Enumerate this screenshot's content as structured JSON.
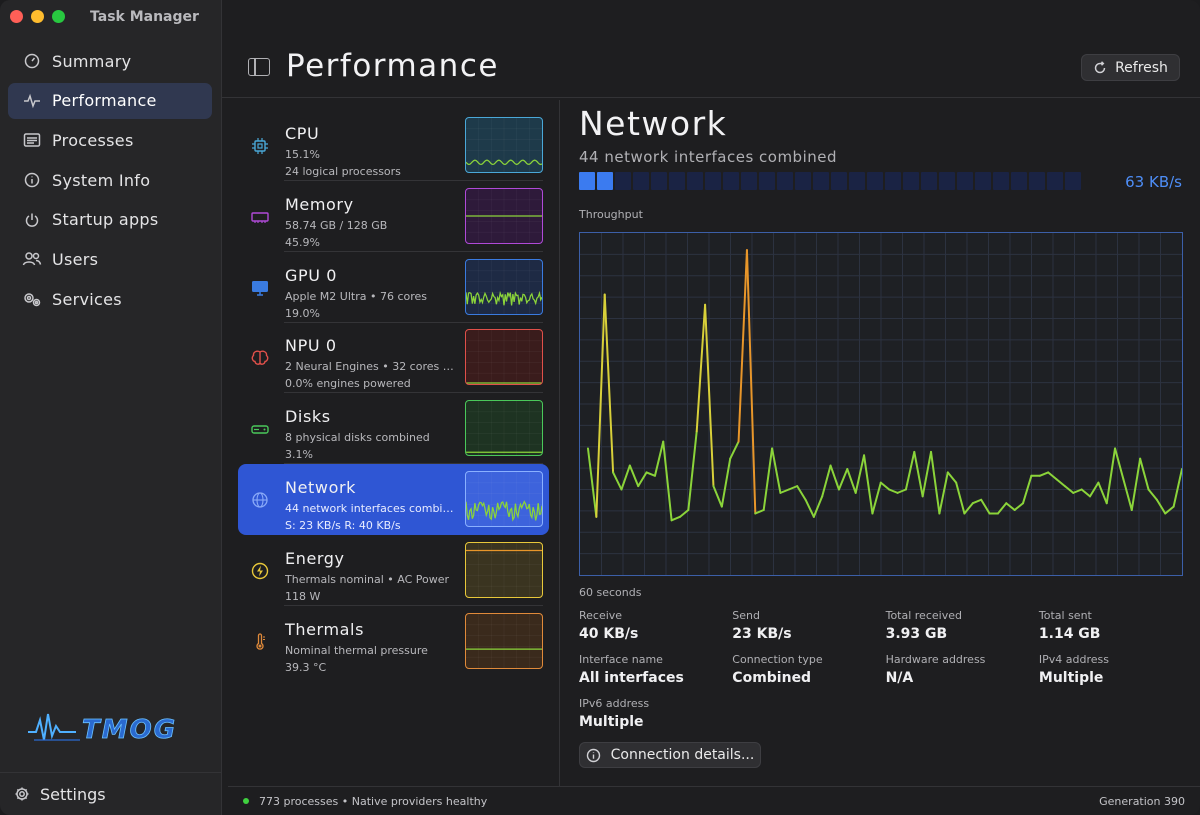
{
  "window": {
    "title": "Task Manager"
  },
  "sidebar": {
    "items": [
      {
        "label": "Summary",
        "icon": "gauge-icon"
      },
      {
        "label": "Performance",
        "icon": "pulse-icon",
        "active": true
      },
      {
        "label": "Processes",
        "icon": "list-icon"
      },
      {
        "label": "System Info",
        "icon": "info-icon"
      },
      {
        "label": "Startup apps",
        "icon": "power-icon"
      },
      {
        "label": "Users",
        "icon": "users-icon"
      },
      {
        "label": "Services",
        "icon": "gears-icon"
      }
    ],
    "logo_text": "TMOG",
    "settings_label": "Settings"
  },
  "header": {
    "title": "Performance",
    "refresh_label": "Refresh"
  },
  "devices": [
    {
      "name": "CPU",
      "line1": "15.1%",
      "line2": "24 logical processors",
      "color": "#4aa8d8",
      "icon": "cpu-icon"
    },
    {
      "name": "Memory",
      "line1": "58.74 GB / 128 GB",
      "line2": "45.9%",
      "color": "#b04ad8",
      "icon": "memory-icon"
    },
    {
      "name": "GPU 0",
      "line1": "Apple M2 Ultra • 76 cores",
      "line2": "19.0%",
      "color": "#3a7be0",
      "icon": "monitor-icon"
    },
    {
      "name": "NPU 0",
      "line1": "2 Neural Engines • 32 cores • h...",
      "line2": "0.0% engines powered",
      "color": "#e0504a",
      "icon": "brain-icon"
    },
    {
      "name": "Disks",
      "line1": "8 physical disks combined",
      "line2": "3.1%",
      "color": "#4ac85a",
      "icon": "disk-icon"
    },
    {
      "name": "Network",
      "line1": "44 network interfaces combined",
      "line2": "S: 23 KB/s  R: 40 KB/s",
      "color": "#2f56d4",
      "icon": "globe-icon",
      "active": true
    },
    {
      "name": "Energy",
      "line1": "Thermals nominal • AC Power",
      "line2": "118 W",
      "color": "#e8c83a",
      "icon": "bolt-icon"
    },
    {
      "name": "Thermals",
      "line1": "Nominal thermal pressure",
      "line2": "39.3 °C",
      "color": "#e08a3a",
      "icon": "thermometer-icon"
    }
  ],
  "detail": {
    "title": "Network",
    "subtitle": "44 network interfaces combined",
    "rate": "63 KB/s",
    "meter": {
      "segments": 28,
      "active": 2
    },
    "throughput_label": "Throughput",
    "window_label": "60 seconds",
    "stats": [
      {
        "label": "Receive",
        "value": "40 KB/s"
      },
      {
        "label": "Send",
        "value": "23 KB/s"
      },
      {
        "label": "Total received",
        "value": "3.93 GB"
      },
      {
        "label": "Total sent",
        "value": "1.14 GB"
      },
      {
        "label": "Interface name",
        "value": "All interfaces"
      },
      {
        "label": "Connection type",
        "value": "Combined"
      },
      {
        "label": "Hardware address",
        "value": "N/A"
      },
      {
        "label": "IPv4 address",
        "value": "Multiple"
      },
      {
        "label": "IPv6 address",
        "value": "Multiple"
      }
    ],
    "details_button": "Connection details..."
  },
  "chart_data": {
    "type": "line",
    "title": "Throughput",
    "xlabel": "60 seconds",
    "ylabel": "",
    "y": [
      37,
      17,
      82,
      30,
      25,
      32,
      26,
      30,
      29,
      39,
      16,
      17,
      19,
      42,
      79,
      26,
      20,
      34,
      39,
      95,
      18,
      19,
      37,
      24,
      25,
      26,
      22,
      17,
      23,
      32,
      25,
      31,
      24,
      35,
      18,
      27,
      25,
      24,
      25,
      36,
      23,
      36,
      18,
      30,
      27,
      18,
      21,
      22,
      18,
      18,
      21,
      19,
      21,
      29,
      29,
      30,
      28,
      26,
      24,
      25,
      23,
      27,
      21,
      37,
      28,
      19,
      34,
      25,
      22,
      18,
      20,
      31
    ],
    "ylim": [
      0,
      100
    ],
    "grid": true
  },
  "status": {
    "text": "773 processes • Native providers healthy",
    "generation": "Generation 390"
  }
}
